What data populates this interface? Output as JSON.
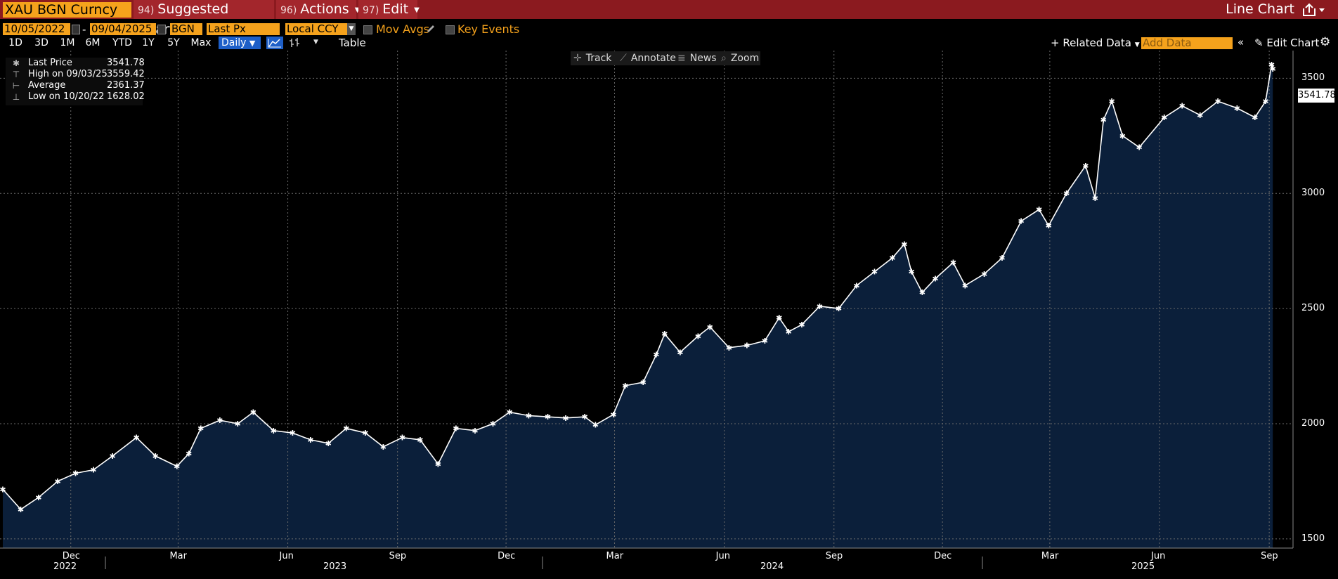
{
  "toolbar": {
    "ticker": "XAU BGN Curncy",
    "suggested_charts": {
      "num": "94)",
      "label": "Suggested Charts"
    },
    "actions": {
      "num": "96)",
      "label": "Actions"
    },
    "edit": {
      "num": "97)",
      "label": "Edit"
    },
    "chart_type": "Line Chart"
  },
  "params": {
    "start_date": "10/05/2022",
    "end_date": "09/04/2025",
    "source": "BGN",
    "field": "Last Px",
    "currency": "Local CCY",
    "mov_avgs": "Mov Avgs",
    "key_events": "Key Events"
  },
  "ranges": [
    "1D",
    "3D",
    "1M",
    "6M",
    "YTD",
    "1Y",
    "5Y",
    "Max"
  ],
  "period": "Daily",
  "table_label": "Table",
  "related_data": "Related Data",
  "add_data_placeholder": "Add Data",
  "edit_chart": "Edit Chart",
  "chart_tools": {
    "track": "Track",
    "annotate": "Annotate",
    "news": "News",
    "zoom": "Zoom"
  },
  "legend": {
    "last_label": "Last Price",
    "last_value": "3541.78",
    "high_label": "High on 09/03/25",
    "high_value": "3559.42",
    "avg_label": "Average",
    "avg_value": "2361.37",
    "low_label": "Low on 10/20/22",
    "low_value": "1628.02"
  },
  "last_price_tag": "3541.78",
  "colors": {
    "topbar": "#8b1a1f",
    "accent": "#f5a21c",
    "area_fill": "#0b1f3a",
    "line": "#ffffff"
  },
  "chart_data": {
    "type": "area",
    "series": [
      {
        "name": "Last Price",
        "x": [
          "2022-10-05",
          "2022-10-20",
          "2022-11-04",
          "2022-11-20",
          "2022-12-05",
          "2022-12-20",
          "2023-01-05",
          "2023-01-25",
          "2023-02-10",
          "2023-02-28",
          "2023-03-10",
          "2023-03-20",
          "2023-04-05",
          "2023-04-20",
          "2023-05-03",
          "2023-05-20",
          "2023-06-05",
          "2023-06-20",
          "2023-07-05",
          "2023-07-20",
          "2023-08-05",
          "2023-08-20",
          "2023-09-05",
          "2023-09-20",
          "2023-10-05",
          "2023-10-20",
          "2023-11-05",
          "2023-11-20",
          "2023-12-04",
          "2023-12-20",
          "2024-01-05",
          "2024-01-20",
          "2024-02-05",
          "2024-02-14",
          "2024-02-29",
          "2024-03-10",
          "2024-03-25",
          "2024-04-05",
          "2024-04-12",
          "2024-04-25",
          "2024-05-10",
          "2024-05-20",
          "2024-06-05",
          "2024-06-20",
          "2024-07-05",
          "2024-07-17",
          "2024-07-25",
          "2024-08-05",
          "2024-08-20",
          "2024-09-05",
          "2024-09-20",
          "2024-10-05",
          "2024-10-20",
          "2024-10-30",
          "2024-11-05",
          "2024-11-14",
          "2024-11-25",
          "2024-12-10",
          "2024-12-20",
          "2025-01-05",
          "2025-01-20",
          "2025-02-05",
          "2025-02-20",
          "2025-02-28",
          "2025-03-15",
          "2025-03-31",
          "2025-04-08",
          "2025-04-15",
          "2025-04-22",
          "2025-05-01",
          "2025-05-15",
          "2025-06-05",
          "2025-06-20",
          "2025-07-05",
          "2025-07-20",
          "2025-08-05",
          "2025-08-20",
          "2025-08-29",
          "2025-09-03",
          "2025-09-04"
        ],
        "values": [
          1715,
          1628,
          1680,
          1750,
          1785,
          1800,
          1860,
          1940,
          1860,
          1815,
          1870,
          1980,
          2015,
          2000,
          2050,
          1970,
          1960,
          1930,
          1915,
          1980,
          1960,
          1900,
          1940,
          1930,
          1825,
          1980,
          1970,
          2000,
          2050,
          2035,
          2030,
          2025,
          2030,
          1995,
          2040,
          2165,
          2180,
          2300,
          2390,
          2310,
          2380,
          2420,
          2330,
          2340,
          2360,
          2460,
          2400,
          2430,
          2510,
          2500,
          2600,
          2660,
          2720,
          2780,
          2660,
          2570,
          2630,
          2700,
          2600,
          2650,
          2720,
          2880,
          2930,
          2860,
          3000,
          3120,
          2980,
          3320,
          3400,
          3250,
          3200,
          3330,
          3380,
          3340,
          3400,
          3370,
          3330,
          3400,
          3559,
          3541
        ]
      }
    ],
    "xticks_month": [
      "Dec",
      "Mar",
      "Jun",
      "Sep",
      "Dec",
      "Mar",
      "Jun",
      "Sep",
      "Dec",
      "Mar",
      "Jun",
      "Sep"
    ],
    "xticks_year": [
      "2022",
      "2023",
      "2024",
      "2025"
    ],
    "yticks": [
      1500,
      2000,
      2500,
      3000,
      3500
    ],
    "ylim": [
      1460,
      3620
    ],
    "grid": true
  }
}
